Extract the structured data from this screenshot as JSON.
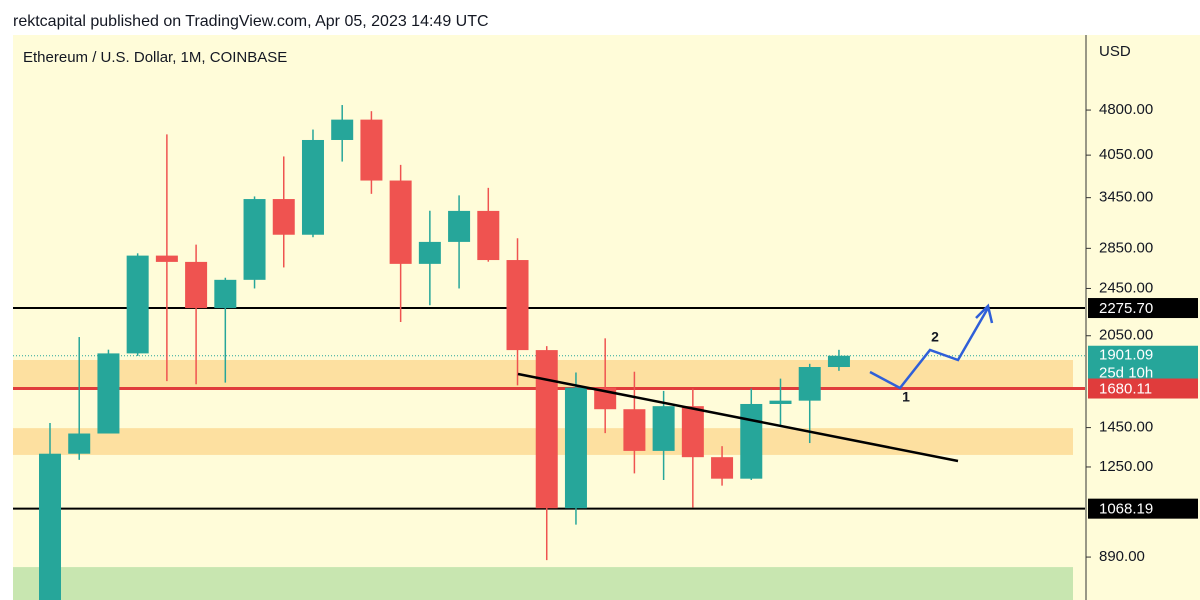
{
  "header": {
    "text": "rektcapital published on TradingView.com, Apr 05, 2023 14:49 UTC"
  },
  "chart_data": {
    "type": "candlestick",
    "title": "Ethereum / U.S. Dollar, 1M, COINBASE",
    "y_axis_label": "USD",
    "log_scale": true,
    "up_color": "#26a69a",
    "down_color": "#ef5350",
    "categories": [
      null,
      null,
      null,
      null,
      null,
      null,
      null,
      null,
      null,
      null,
      null,
      null,
      null,
      null,
      null,
      null,
      null,
      null,
      null,
      null,
      null,
      null,
      null,
      null,
      null,
      null,
      null,
      null
    ],
    "open": [
      737,
      1314,
      1418,
      1918,
      2773,
      2708,
      2275,
      2531,
      3432,
      3000,
      4288,
      4630,
      3680,
      2688,
      2920,
      3282,
      2727,
      1942,
      1070,
      1686,
      1554,
      1328,
      1572,
      1297,
      1196,
      1585,
      1605,
      1822
    ],
    "high": [
      1475,
      2040,
      1945,
      2797,
      4380,
      2890,
      2551,
      3466,
      4030,
      4460,
      4892,
      4780,
      3904,
      3284,
      3480,
      3580,
      2960,
      1971,
      1785,
      2030,
      1790,
      1665,
      1680,
      1352,
      1680,
      1744,
      1844,
      1944
    ],
    "low": [
      714,
      1284,
      1420,
      1900,
      1728,
      1707,
      1718,
      2450,
      2652,
      2972,
      3953,
      3500,
      2159,
      2300,
      2450,
      2710,
      1700,
      880,
      1006,
      1420,
      1220,
      1190,
      1073,
      1165,
      1190,
      1461,
      1368,
      1796
    ],
    "close": [
      1314,
      1418,
      1918,
      2773,
      2708,
      2275,
      2531,
      3432,
      3000,
      4288,
      4630,
      3680,
      2688,
      2920,
      3282,
      2727,
      1942,
      1070,
      1686,
      1554,
      1328,
      1572,
      1297,
      1196,
      1585,
      1605,
      1822,
      1901.09
    ],
    "ylim": [
      757,
      6370
    ],
    "yticks": [
      {
        "value": 4800,
        "label": "4800.00"
      },
      {
        "value": 4050,
        "label": "4050.00"
      },
      {
        "value": 3450,
        "label": "3450.00"
      },
      {
        "value": 2850,
        "label": "2850.00"
      },
      {
        "value": 2450,
        "label": "2450.00"
      },
      {
        "value": 2050,
        "label": "2050.00"
      },
      {
        "value": 1450,
        "label": "1450.00"
      },
      {
        "value": 1250,
        "label": "1250.00"
      },
      {
        "value": 890,
        "label": "890.00"
      }
    ],
    "zones": [
      {
        "from": 1683,
        "to": 1871,
        "color": "#fde0a0"
      },
      {
        "from": 1308,
        "to": 1447,
        "color": "#fde0a0"
      },
      {
        "from": 757,
        "to": 857,
        "color": "#c8e6b0"
      }
    ],
    "levels": [
      {
        "value": 2275.7,
        "label": "2275.70",
        "color": "#000000"
      },
      {
        "value": 1680.11,
        "label": "1680.11",
        "color": "#e03c3c"
      },
      {
        "value": 1068.19,
        "label": "1068.19",
        "color": "#000000"
      }
    ],
    "last_price": {
      "value": 1901.09,
      "label": "1901.09",
      "countdown": "25d 10h",
      "color": "#26a69a"
    },
    "annotations": [
      "1",
      "2"
    ]
  }
}
